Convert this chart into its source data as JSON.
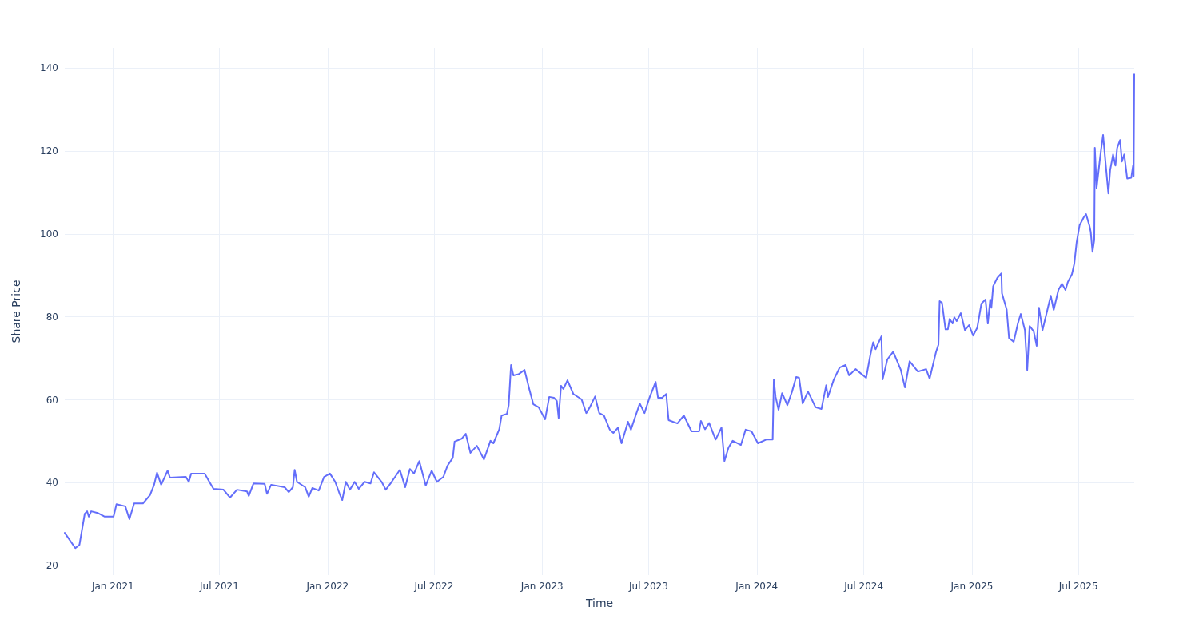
{
  "chart_data": {
    "type": "line",
    "xlabel": "Time",
    "ylabel": "Share Price",
    "grid": true,
    "marker": "none",
    "line_style": "solid",
    "xlim": [
      "2020-10-11",
      "2025-10-04"
    ],
    "xticks": [
      {
        "value": "2021-01-01",
        "label": "Jan 2021"
      },
      {
        "value": "2021-07-01",
        "label": "Jul 2021"
      },
      {
        "value": "2022-01-01",
        "label": "Jan 2022"
      },
      {
        "value": "2022-07-01",
        "label": "Jul 2022"
      },
      {
        "value": "2023-01-01",
        "label": "Jan 2023"
      },
      {
        "value": "2023-07-01",
        "label": "Jul 2023"
      },
      {
        "value": "2024-01-01",
        "label": "Jan 2024"
      },
      {
        "value": "2024-07-01",
        "label": "Jul 2024"
      },
      {
        "value": "2025-01-01",
        "label": "Jan 2025"
      },
      {
        "value": "2025-07-01",
        "label": "Jul 2025"
      }
    ],
    "ylim": [
      17.7,
      144.9
    ],
    "yticks": [
      20,
      40,
      60,
      80,
      100,
      120,
      140
    ],
    "series": [
      {
        "color": "#636efa",
        "x": [
          "2020-10-11",
          "2020-10-29",
          "2020-11-05",
          "2020-11-14",
          "2020-11-18",
          "2020-11-21",
          "2020-11-25",
          "2020-12-06",
          "2020-12-18",
          "2021-01-02",
          "2021-01-07",
          "2021-01-22",
          "2021-01-29",
          "2021-02-06",
          "2021-02-21",
          "2021-03-05",
          "2021-03-12",
          "2021-03-17",
          "2021-03-24",
          "2021-04-04",
          "2021-04-08",
          "2021-05-05",
          "2021-05-10",
          "2021-05-14",
          "2021-06-06",
          "2021-06-14",
          "2021-06-21",
          "2021-07-08",
          "2021-07-19",
          "2021-07-31",
          "2021-08-17",
          "2021-08-20",
          "2021-08-28",
          "2021-09-16",
          "2021-09-20",
          "2021-09-27",
          "2021-10-20",
          "2021-10-27",
          "2021-11-03",
          "2021-11-06",
          "2021-11-10",
          "2021-11-24",
          "2021-11-30",
          "2021-12-06",
          "2021-12-17",
          "2021-12-26",
          "2022-01-05",
          "2022-01-14",
          "2022-01-21",
          "2022-01-26",
          "2022-02-01",
          "2022-02-08",
          "2022-02-16",
          "2022-02-23",
          "2022-03-05",
          "2022-03-15",
          "2022-03-21",
          "2022-04-03",
          "2022-04-10",
          "2022-04-19",
          "2022-05-04",
          "2022-05-13",
          "2022-05-21",
          "2022-05-28",
          "2022-06-06",
          "2022-06-17",
          "2022-06-27",
          "2022-07-06",
          "2022-07-17",
          "2022-07-24",
          "2022-08-02",
          "2022-08-05",
          "2022-08-17",
          "2022-08-24",
          "2022-09-01",
          "2022-09-12",
          "2022-09-24",
          "2022-10-05",
          "2022-10-10",
          "2022-10-20",
          "2022-10-24",
          "2022-11-02",
          "2022-11-05",
          "2022-11-09",
          "2022-11-13",
          "2022-11-22",
          "2022-12-02",
          "2022-12-10",
          "2022-12-17",
          "2022-12-26",
          "2023-01-06",
          "2023-01-13",
          "2023-01-21",
          "2023-01-26",
          "2023-01-29",
          "2023-02-02",
          "2023-02-06",
          "2023-02-13",
          "2023-02-23",
          "2023-03-09",
          "2023-03-17",
          "2023-03-23",
          "2023-04-01",
          "2023-04-08",
          "2023-04-16",
          "2023-04-26",
          "2023-05-02",
          "2023-05-10",
          "2023-05-16",
          "2023-05-27",
          "2023-06-01",
          "2023-06-09",
          "2023-06-16",
          "2023-06-24",
          "2023-07-02",
          "2023-07-13",
          "2023-07-17",
          "2023-07-24",
          "2023-07-31",
          "2023-08-04",
          "2023-08-19",
          "2023-08-30",
          "2023-09-12",
          "2023-09-25",
          "2023-09-28",
          "2023-10-05",
          "2023-10-12",
          "2023-10-23",
          "2023-11-02",
          "2023-11-07",
          "2023-11-14",
          "2023-11-21",
          "2023-12-05",
          "2023-12-13",
          "2023-12-23",
          "2024-01-03",
          "2024-01-17",
          "2024-01-28",
          "2024-01-30",
          "2024-02-02",
          "2024-02-07",
          "2024-02-13",
          "2024-02-22",
          "2024-03-01",
          "2024-03-08",
          "2024-03-13",
          "2024-03-19",
          "2024-03-28",
          "2024-04-10",
          "2024-04-20",
          "2024-04-28",
          "2024-05-01",
          "2024-05-11",
          "2024-05-21",
          "2024-05-31",
          "2024-06-06",
          "2024-06-17",
          "2024-07-05",
          "2024-07-12",
          "2024-07-17",
          "2024-07-21",
          "2024-07-31",
          "2024-08-02",
          "2024-08-10",
          "2024-08-20",
          "2024-09-02",
          "2024-09-09",
          "2024-09-17",
          "2024-10-01",
          "2024-10-15",
          "2024-10-21",
          "2024-11-01",
          "2024-11-05",
          "2024-11-07",
          "2024-11-11",
          "2024-11-17",
          "2024-11-21",
          "2024-11-24",
          "2024-11-29",
          "2024-12-02",
          "2024-12-06",
          "2024-12-13",
          "2024-12-20",
          "2024-12-27",
          "2025-01-03",
          "2025-01-10",
          "2025-01-17",
          "2025-01-24",
          "2025-01-28",
          "2025-02-01",
          "2025-02-03",
          "2025-02-06",
          "2025-02-13",
          "2025-02-20",
          "2025-02-21",
          "2025-03-01",
          "2025-03-05",
          "2025-03-13",
          "2025-03-20",
          "2025-03-25",
          "2025-04-01",
          "2025-04-05",
          "2025-04-09",
          "2025-04-16",
          "2025-04-21",
          "2025-04-25",
          "2025-05-01",
          "2025-05-15",
          "2025-05-20",
          "2025-05-28",
          "2025-06-03",
          "2025-06-09",
          "2025-06-13",
          "2025-06-20",
          "2025-06-24",
          "2025-06-28",
          "2025-07-03",
          "2025-07-10",
          "2025-07-14",
          "2025-07-20",
          "2025-07-22",
          "2025-07-25",
          "2025-07-28",
          "2025-07-29",
          "2025-08-01",
          "2025-08-06",
          "2025-08-09",
          "2025-08-12",
          "2025-08-16",
          "2025-08-21",
          "2025-08-24",
          "2025-08-29",
          "2025-09-02",
          "2025-09-05",
          "2025-09-10",
          "2025-09-13",
          "2025-09-17",
          "2025-09-22",
          "2025-09-29",
          "2025-10-02",
          "2025-10-03",
          "2025-10-04"
        ],
        "values": [
          27.9,
          24.2,
          25.0,
          32.5,
          33.1,
          31.8,
          33.1,
          32.7,
          31.8,
          31.8,
          34.8,
          34.3,
          31.2,
          35.0,
          35.0,
          37.0,
          39.5,
          42.4,
          39.5,
          42.9,
          41.2,
          41.4,
          40.2,
          42.2,
          42.2,
          40.2,
          38.5,
          38.3,
          36.4,
          38.3,
          37.9,
          36.8,
          39.8,
          39.7,
          37.3,
          39.5,
          38.9,
          37.7,
          38.9,
          43.1,
          40.2,
          38.9,
          36.6,
          38.7,
          38.1,
          41.4,
          42.2,
          40.2,
          37.5,
          35.8,
          40.2,
          38.3,
          40.2,
          38.5,
          40.2,
          39.8,
          42.5,
          40.2,
          38.3,
          40.0,
          43.1,
          38.9,
          43.3,
          42.2,
          45.2,
          39.3,
          42.9,
          40.2,
          41.4,
          44.1,
          46.0,
          49.9,
          50.6,
          51.8,
          47.2,
          48.9,
          45.6,
          50.1,
          49.5,
          52.9,
          56.2,
          56.6,
          58.7,
          68.4,
          65.9,
          66.2,
          67.2,
          62.6,
          58.9,
          58.2,
          55.3,
          60.7,
          60.5,
          59.7,
          55.6,
          63.4,
          62.6,
          64.7,
          61.4,
          60.1,
          56.8,
          58.2,
          60.8,
          56.8,
          56.2,
          52.8,
          52.0,
          53.3,
          49.5,
          54.7,
          52.8,
          56.2,
          59.1,
          56.8,
          60.3,
          64.3,
          60.5,
          60.5,
          61.4,
          55.1,
          54.3,
          56.2,
          52.4,
          52.4,
          54.9,
          52.9,
          54.4,
          50.4,
          53.3,
          45.2,
          48.5,
          50.1,
          49.1,
          52.8,
          52.4,
          49.5,
          50.4,
          50.4,
          64.9,
          60.7,
          57.6,
          61.6,
          58.7,
          62.0,
          65.5,
          65.3,
          59.1,
          62.0,
          58.2,
          57.8,
          63.5,
          60.7,
          64.9,
          67.8,
          68.4,
          65.9,
          67.4,
          65.3,
          70.7,
          73.9,
          72.2,
          75.3,
          64.9,
          69.7,
          71.6,
          67.2,
          63.0,
          69.3,
          66.8,
          67.4,
          65.1,
          71.6,
          73.3,
          83.8,
          83.4,
          77.0,
          77.0,
          79.5,
          78.4,
          79.9,
          79.0,
          80.9,
          76.8,
          78.0,
          75.5,
          77.4,
          83.2,
          84.2,
          78.4,
          84.2,
          82.2,
          87.4,
          89.4,
          90.5,
          85.7,
          81.8,
          74.9,
          74.0,
          78.4,
          80.7,
          76.8,
          67.2,
          77.8,
          76.5,
          73.0,
          82.2,
          76.8,
          85.1,
          81.7,
          86.5,
          88.0,
          86.5,
          88.4,
          90.3,
          92.8,
          98.0,
          102.1,
          104.0,
          104.8,
          101.9,
          100.5,
          95.7,
          98.6,
          120.8,
          111.1,
          117.3,
          120.8,
          123.9,
          117.5,
          109.8,
          115.4,
          119.2,
          116.5,
          120.8,
          122.7,
          117.5,
          119.2,
          113.4,
          113.6,
          116.5,
          114.0,
          138.5
        ]
      }
    ]
  }
}
